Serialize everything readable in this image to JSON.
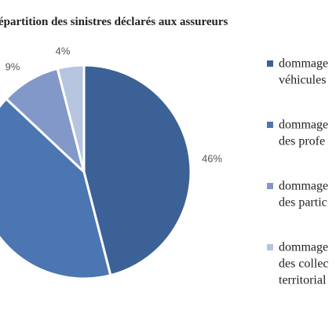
{
  "chart_data": {
    "type": "pie",
    "title": "épartition des sinistres déclarés aux assureurs",
    "categories": [
      [
        "dommage",
        "véhicules"
      ],
      [
        "dommage",
        "des profe"
      ],
      [
        "dommage",
        "des partic"
      ],
      [
        "dommage",
        "des collec",
        "territorial"
      ]
    ],
    "values": [
      46,
      41,
      9,
      4
    ],
    "value_labels": [
      "46%",
      null,
      "9%",
      "4%"
    ],
    "colors": [
      "#3c6196",
      "#4b76b1",
      "#8198c8",
      "#b6c4e0"
    ]
  }
}
